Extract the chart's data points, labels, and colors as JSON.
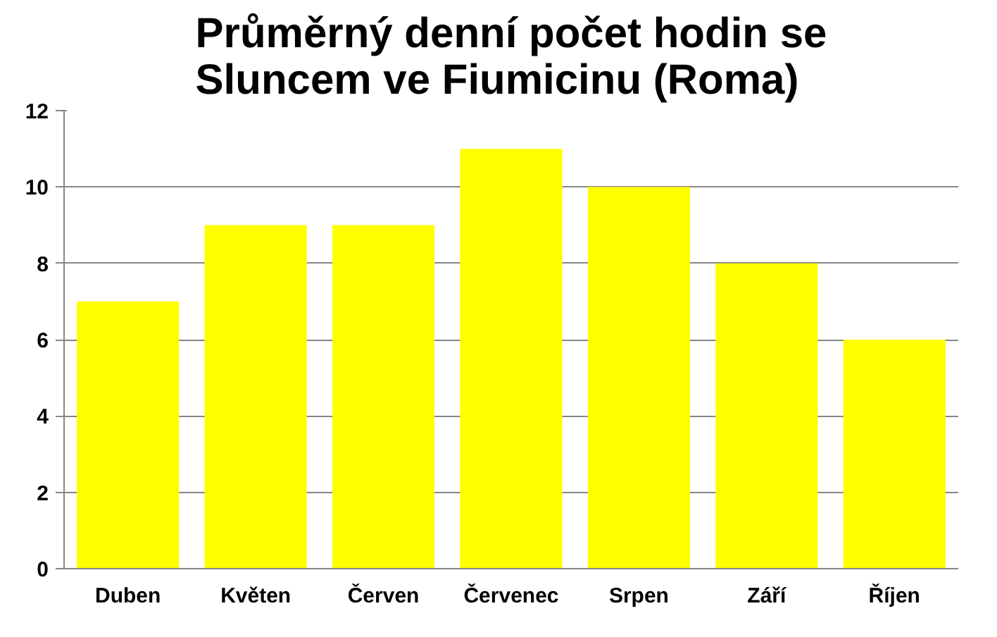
{
  "chart_data": {
    "type": "bar",
    "title": "Průměrný denní počet hodin se\nSluncem ve Fiumicinu (Roma)",
    "categories": [
      "Duben",
      "Květen",
      "Červen",
      "Červenec",
      "Srpen",
      "Září",
      "Říjen"
    ],
    "values": [
      7,
      9,
      9,
      11,
      10,
      8,
      6
    ],
    "color": "#ffff00",
    "ylim": [
      0,
      12
    ],
    "yticks": [
      0,
      2,
      4,
      6,
      8,
      10,
      12
    ],
    "grid": "y"
  }
}
